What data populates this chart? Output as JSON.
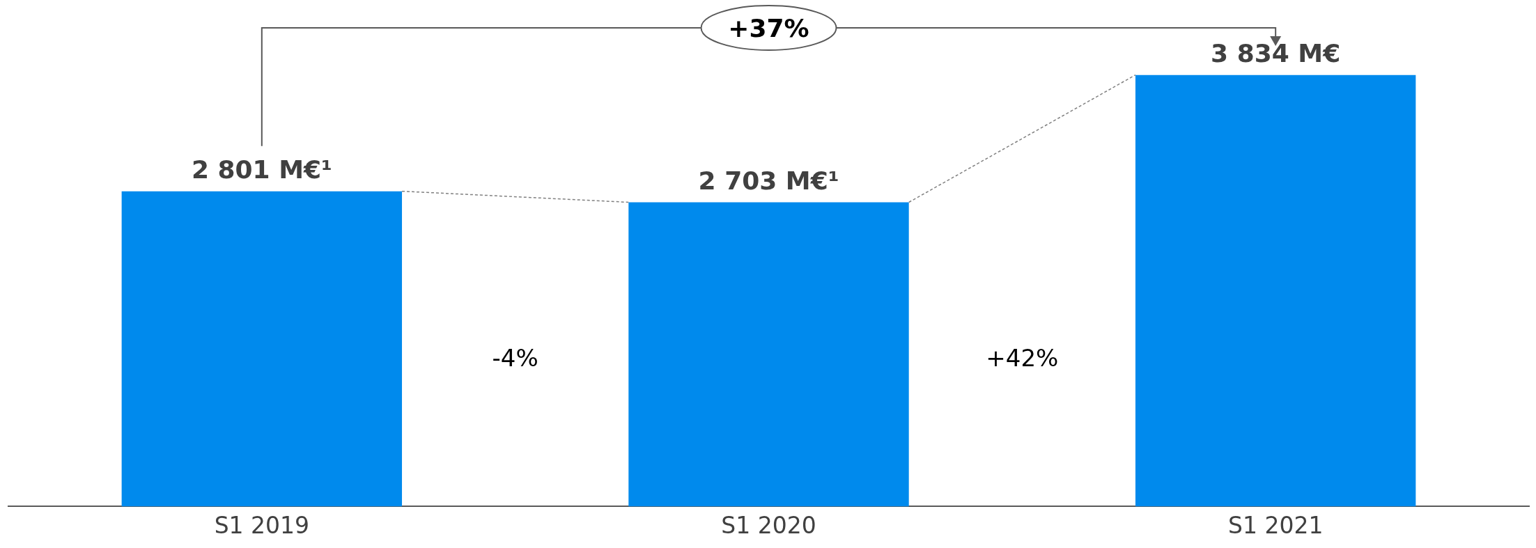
{
  "chart_data": {
    "type": "bar",
    "categories": [
      "S1 2019",
      "S1 2020",
      "S1 2021"
    ],
    "values": [
      2801,
      2703,
      3834
    ],
    "color": "#008aed",
    "value_labels": [
      "2 801 M€¹",
      "2 703 M€¹",
      "3 834 M€"
    ],
    "annotations": [
      "-4%",
      "+42%",
      "+37%"
    ],
    "grid": false,
    "legend": false
  }
}
